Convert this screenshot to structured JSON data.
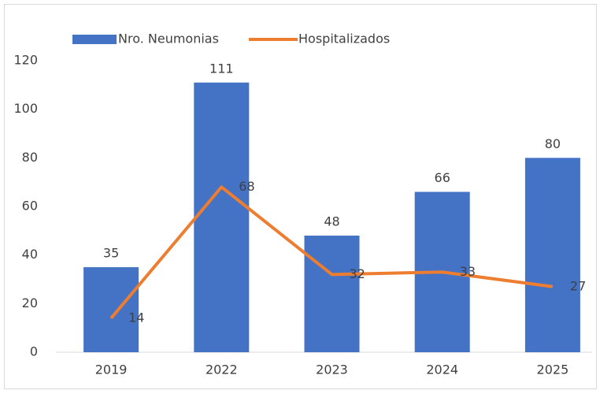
{
  "chart_data": {
    "type": "bar",
    "categories": [
      "2019",
      "2022",
      "2023",
      "2024",
      "2025"
    ],
    "series": [
      {
        "name": "Nro. Neumonias",
        "type": "bar",
        "color": "#4472c4",
        "values": [
          35,
          111,
          48,
          66,
          80
        ]
      },
      {
        "name": "Hospitalizados",
        "type": "line",
        "color": "#ed7d31",
        "values": [
          14,
          68,
          32,
          33,
          27
        ]
      }
    ],
    "ylim": [
      0,
      120
    ],
    "yticks": [
      0,
      20,
      40,
      60,
      80,
      100,
      120
    ],
    "grid": false,
    "legend": "top"
  }
}
